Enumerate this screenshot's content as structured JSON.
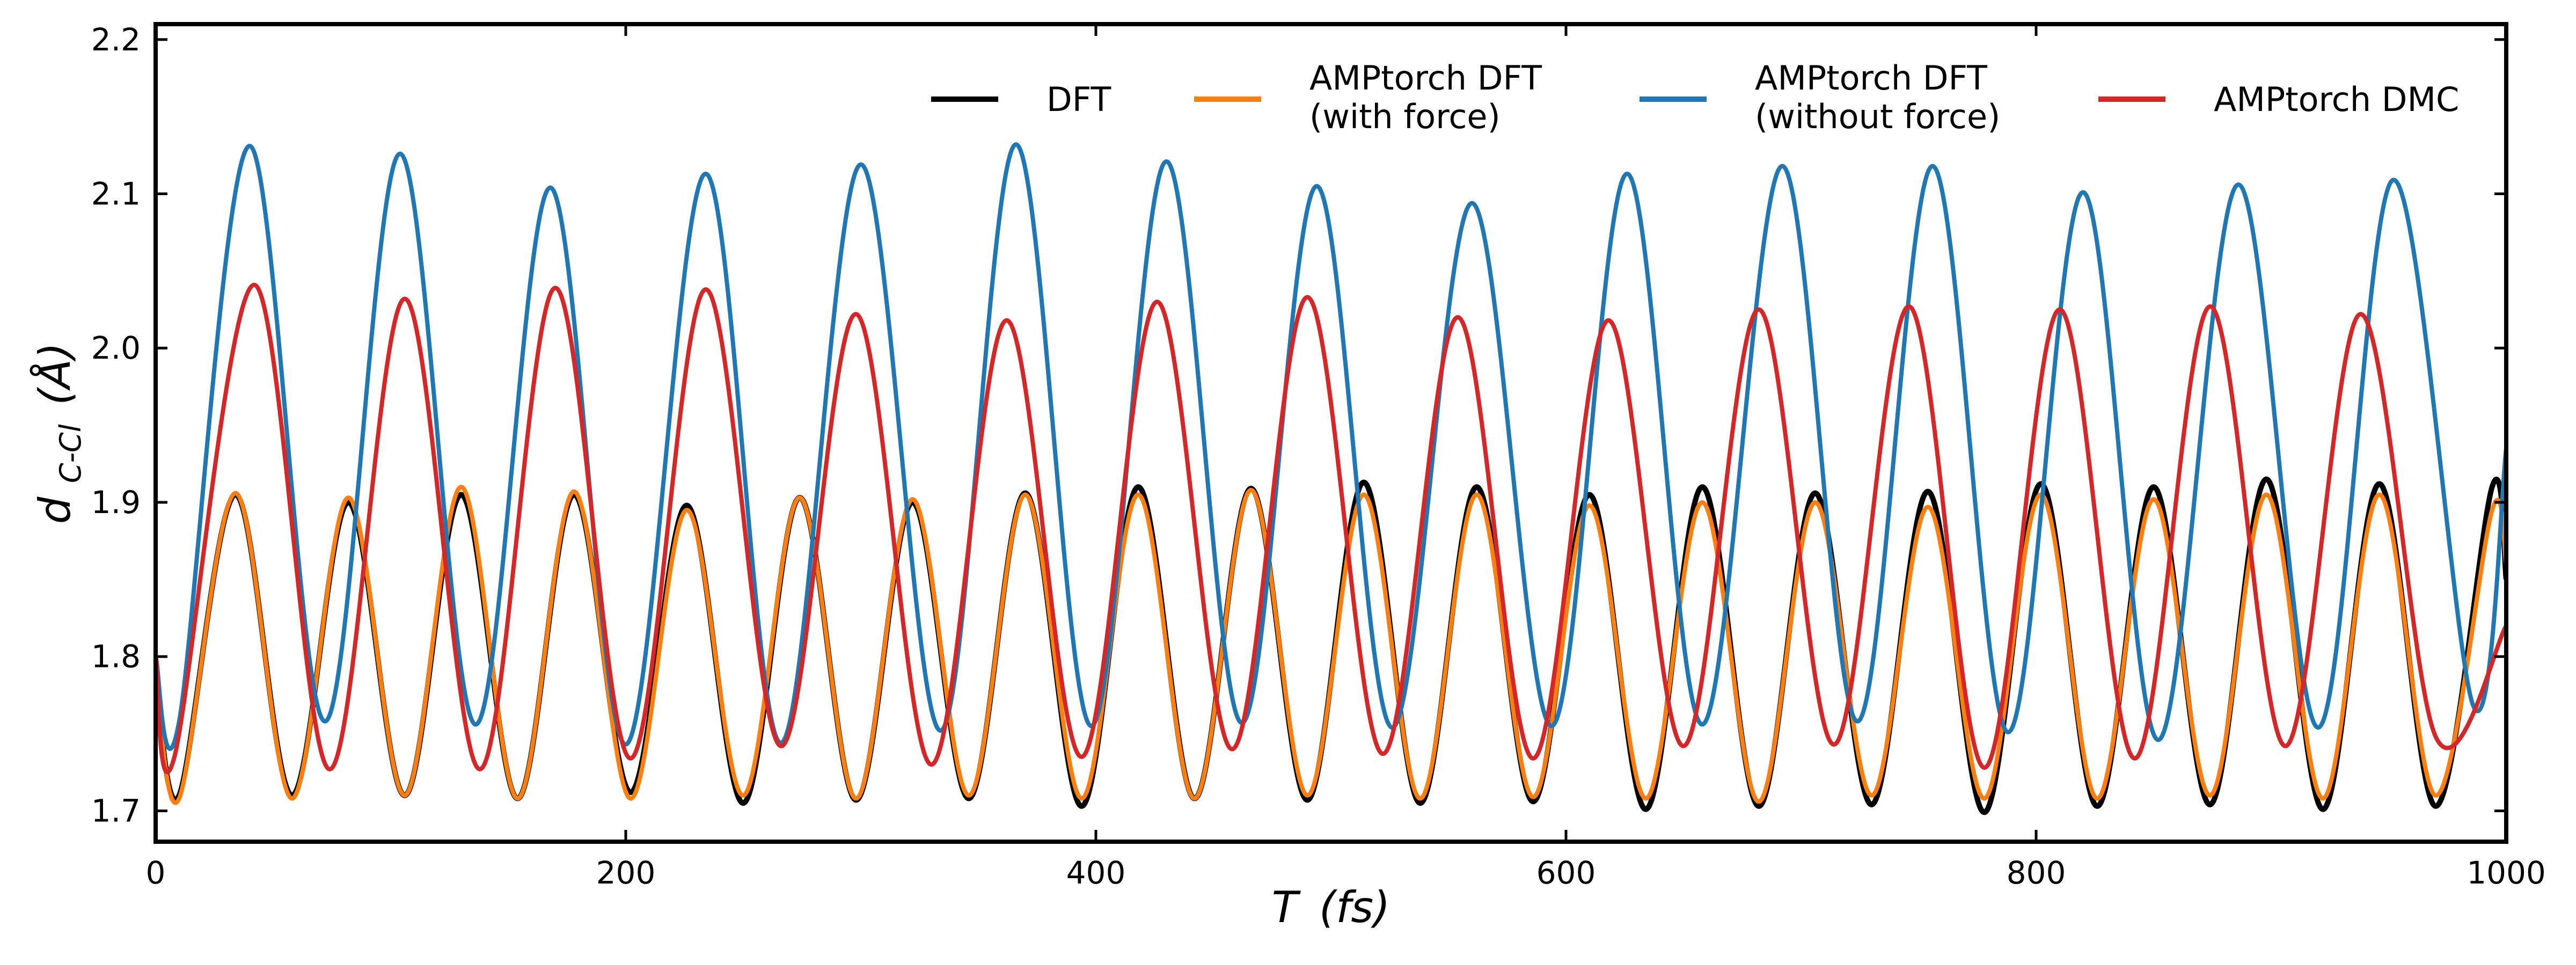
{
  "chart_data": {
    "type": "line",
    "title": "",
    "xlabel_main": "T",
    "xlabel_unit": "(fs)",
    "ylabel_main": "d",
    "ylabel_sub": "C-Cl",
    "ylabel_unit": "(Å)",
    "xlim": [
      0,
      1000
    ],
    "ylim": [
      1.68,
      2.21
    ],
    "xticks": [
      0,
      200,
      400,
      600,
      800,
      1000
    ],
    "yticks": [
      1.7,
      1.8,
      1.9,
      2.0,
      2.1,
      2.2
    ],
    "grid": false,
    "legend_position": "top-right",
    "series": [
      {
        "name": "DFT",
        "color": "#000000",
        "x": [
          0,
          10,
          34,
          58,
          82,
          106,
          130,
          154,
          178,
          202,
          226,
          250,
          274,
          298,
          322,
          346,
          370,
          394,
          418,
          442,
          466,
          490,
          514,
          538,
          562,
          586,
          610,
          634,
          658,
          682,
          706,
          730,
          754,
          778,
          802,
          826,
          850,
          874,
          898,
          922,
          946,
          970,
          994,
          1000
        ],
        "y": [
          1.79,
          1.71,
          1.905,
          1.71,
          1.9,
          1.71,
          1.905,
          1.708,
          1.905,
          1.712,
          1.898,
          1.705,
          1.903,
          1.707,
          1.9,
          1.708,
          1.906,
          1.703,
          1.91,
          1.708,
          1.909,
          1.707,
          1.913,
          1.705,
          1.91,
          1.706,
          1.905,
          1.701,
          1.91,
          1.703,
          1.906,
          1.704,
          1.907,
          1.699,
          1.912,
          1.703,
          1.91,
          1.704,
          1.915,
          1.701,
          1.912,
          1.703,
          1.91,
          1.85
        ]
      },
      {
        "name": "AMPtorch DFT\n(with force)",
        "color": "#ff7f0e",
        "x": [
          0,
          10,
          34,
          58,
          82,
          106,
          130,
          154,
          178,
          202,
          226,
          250,
          274,
          298,
          322,
          346,
          370,
          394,
          418,
          442,
          466,
          490,
          514,
          538,
          562,
          586,
          610,
          634,
          658,
          682,
          706,
          730,
          754,
          778,
          802,
          826,
          850,
          874,
          898,
          922,
          946,
          970,
          994,
          1000
        ],
        "y": [
          1.79,
          1.708,
          1.906,
          1.708,
          1.903,
          1.71,
          1.91,
          1.708,
          1.907,
          1.708,
          1.895,
          1.71,
          1.903,
          1.708,
          1.902,
          1.71,
          1.905,
          1.708,
          1.905,
          1.708,
          1.908,
          1.71,
          1.905,
          1.708,
          1.905,
          1.709,
          1.898,
          1.708,
          1.9,
          1.706,
          1.9,
          1.71,
          1.897,
          1.708,
          1.905,
          1.708,
          1.902,
          1.71,
          1.905,
          1.708,
          1.905,
          1.71,
          1.895,
          1.86
        ]
      },
      {
        "name": "AMPtorch DFT\n(without force)",
        "color": "#1f77b4",
        "x": [
          0,
          10,
          40,
          72,
          104,
          136,
          168,
          200,
          234,
          266,
          300,
          334,
          366,
          398,
          430,
          462,
          494,
          526,
          560,
          594,
          626,
          658,
          692,
          724,
          756,
          788,
          820,
          852,
          886,
          920,
          952,
          986,
          1000
        ],
        "y": [
          1.8,
          1.758,
          2.131,
          1.758,
          2.126,
          1.756,
          2.104,
          1.743,
          2.113,
          1.744,
          2.119,
          1.752,
          2.132,
          1.755,
          2.121,
          1.757,
          2.105,
          1.754,
          2.094,
          1.755,
          2.113,
          1.756,
          2.118,
          1.758,
          2.118,
          1.751,
          2.101,
          1.746,
          2.106,
          1.754,
          2.109,
          1.768,
          1.935
        ]
      },
      {
        "name": "AMPtorch DMC",
        "color": "#d62728",
        "x": [
          0,
          8,
          42,
          74,
          106,
          138,
          170,
          202,
          234,
          266,
          298,
          330,
          362,
          394,
          426,
          458,
          490,
          522,
          554,
          586,
          618,
          650,
          682,
          714,
          746,
          778,
          810,
          842,
          874,
          906,
          938,
          970,
          1000
        ],
        "y": [
          1.8,
          1.735,
          2.041,
          1.727,
          2.032,
          1.727,
          2.039,
          1.734,
          2.038,
          1.742,
          2.022,
          1.73,
          2.018,
          1.735,
          2.03,
          1.74,
          2.033,
          1.737,
          2.02,
          1.734,
          2.018,
          1.742,
          2.025,
          1.743,
          2.027,
          1.728,
          2.025,
          1.734,
          2.027,
          1.742,
          2.022,
          1.748,
          1.82
        ]
      }
    ]
  }
}
